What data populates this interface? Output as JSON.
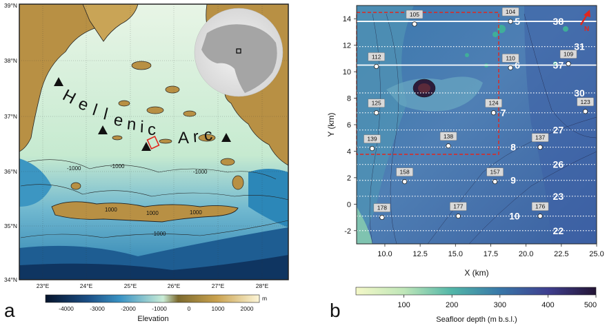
{
  "panel_a": {
    "label": "a",
    "lat_labels": [
      "39°N",
      "38°N",
      "37°N",
      "36°N",
      "35°N",
      "34°N"
    ],
    "lon_labels": [
      "23°E",
      "24°E",
      "25°E",
      "26°E",
      "27°E",
      "28°E"
    ],
    "arc_letters": [
      "H",
      "e",
      "l",
      "l",
      "e",
      "n",
      "i",
      "c",
      "A",
      "r",
      "c"
    ],
    "contour_labels": [
      "-1000",
      "-1000",
      "-1000",
      "-1000",
      "1000",
      "1000",
      "1000"
    ],
    "colorbar": {
      "ticks": [
        "-4000",
        "-3000",
        "-2000",
        "-1000",
        "0",
        "1000",
        "2000"
      ],
      "unit": "m",
      "title": "Elevation"
    },
    "colors": {
      "deep": "#0b2a4a",
      "mid": "#1f7ab0",
      "shallow": "#8fd4c4",
      "shelf": "#e6f4e6",
      "land": "#b89044"
    }
  },
  "panel_b": {
    "label": "b",
    "xlabel": "X (km)",
    "ylabel": "Y (km)",
    "xticks": [
      "10.0",
      "12.5",
      "15.0",
      "17.5",
      "20.0",
      "22.5",
      "25.0"
    ],
    "yticks": [
      "14",
      "12",
      "10",
      "8",
      "6",
      "4",
      "2",
      "0",
      "-2"
    ],
    "north": "N",
    "stations": [
      {
        "id": "105",
        "x": 12.1,
        "y": 13.6
      },
      {
        "id": "104",
        "x": 18.9,
        "y": 13.8
      },
      {
        "id": "112",
        "x": 9.4,
        "y": 10.4
      },
      {
        "id": "110",
        "x": 18.9,
        "y": 10.3
      },
      {
        "id": "109",
        "x": 23.0,
        "y": 10.6
      },
      {
        "id": "125",
        "x": 9.4,
        "y": 6.9
      },
      {
        "id": "124",
        "x": 17.7,
        "y": 6.9
      },
      {
        "id": "123",
        "x": 24.2,
        "y": 7.0
      },
      {
        "id": "139",
        "x": 9.1,
        "y": 4.2
      },
      {
        "id": "138",
        "x": 14.5,
        "y": 4.4
      },
      {
        "id": "137",
        "x": 21.0,
        "y": 4.3
      },
      {
        "id": "158",
        "x": 11.4,
        "y": 1.7
      },
      {
        "id": "157",
        "x": 17.8,
        "y": 1.7
      },
      {
        "id": "178",
        "x": 9.8,
        "y": -1.0
      },
      {
        "id": "177",
        "x": 15.2,
        "y": -0.9
      },
      {
        "id": "176",
        "x": 21.0,
        "y": -0.9
      }
    ],
    "lines": [
      {
        "label": "5",
        "y": 13.8,
        "lx": 19.2,
        "solid": true
      },
      {
        "label": "38",
        "y": 13.8,
        "lx": 21.9,
        "solid": true
      },
      {
        "label": "31",
        "y": 11.9,
        "lx": 23.4,
        "solid": false
      },
      {
        "label": "6",
        "y": 10.5,
        "lx": 19.2,
        "solid": true
      },
      {
        "label": "37",
        "y": 10.5,
        "lx": 21.9,
        "solid": true
      },
      {
        "label": "30",
        "y": 8.4,
        "lx": 23.4,
        "solid": false
      },
      {
        "label": "7",
        "y": 6.9,
        "lx": 18.2,
        "solid": false
      },
      {
        "label": "27",
        "y": 5.6,
        "lx": 21.9,
        "solid": false
      },
      {
        "label": "8",
        "y": 4.3,
        "lx": 18.9,
        "solid": false
      },
      {
        "label": "26",
        "y": 3.0,
        "lx": 21.9,
        "solid": false
      },
      {
        "label": "9",
        "y": 1.8,
        "lx": 18.9,
        "solid": false
      },
      {
        "label": "23",
        "y": 0.6,
        "lx": 21.9,
        "solid": false
      },
      {
        "label": "10",
        "y": -0.9,
        "lx": 18.8,
        "solid": false
      },
      {
        "label": "22",
        "y": -2.0,
        "lx": 21.9,
        "solid": false
      }
    ],
    "colorbar": {
      "ticks": [
        "100",
        "200",
        "300",
        "400",
        "500"
      ],
      "title": "Seafloor depth (m b.s.l.)"
    }
  }
}
